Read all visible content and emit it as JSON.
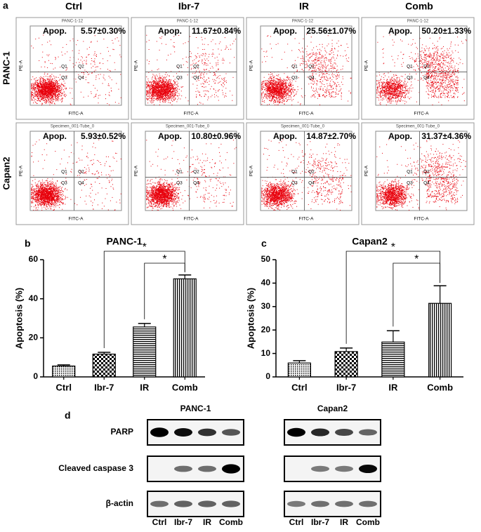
{
  "panel_labels": [
    "a",
    "b",
    "c",
    "d"
  ],
  "flow": {
    "columns": [
      "Ctrl",
      "Ibr-7",
      "IR",
      "Comb"
    ],
    "rows": [
      {
        "label": "PANC-1",
        "specimen": "PANC-1-12",
        "apop_values": [
          "5.57±0.30%",
          "11.67±0.84%",
          "25.56±1.07%",
          "50.20±1.33%"
        ]
      },
      {
        "label": "Capan2",
        "specimen": "Specimen_001-Tube_0",
        "apop_values": [
          "5.93±0.52%",
          "10.80±0.96%",
          "14.87±2.70%",
          "31.37±4.36%"
        ]
      }
    ],
    "apop_label": "Apop.",
    "quadrants": [
      "Q1",
      "Q2",
      "Q3",
      "Q4"
    ],
    "x_axis_label": "FITC-A",
    "y_axis_label": "PE-A"
  },
  "chart_data": [
    {
      "type": "bar",
      "title": "PANC-1",
      "ylabel": "Apoptosis (%)",
      "categories": [
        "Ctrl",
        "Ibr-7",
        "IR",
        "Comb"
      ],
      "values": [
        5.57,
        11.67,
        25.56,
        50.2
      ],
      "errors": [
        0.6,
        0.9,
        1.8,
        2.0
      ],
      "ylim": [
        0,
        60
      ],
      "yticks": [
        0,
        20,
        40,
        60
      ],
      "color": "#000000",
      "comparisons": [
        {
          "pair": [
            "Ibr-7",
            "Comb"
          ],
          "label": "*"
        },
        {
          "pair": [
            "IR",
            "Comb"
          ],
          "label": "*"
        }
      ]
    },
    {
      "type": "bar",
      "title": "Capan2",
      "ylabel": "Apoptosis (%)",
      "categories": [
        "Ctrl",
        "Ibr-7",
        "IR",
        "Comb"
      ],
      "values": [
        5.93,
        10.8,
        14.87,
        31.37
      ],
      "errors": [
        1.0,
        1.5,
        4.8,
        7.5
      ],
      "ylim": [
        0,
        50
      ],
      "yticks": [
        0,
        10,
        20,
        30,
        40,
        50
      ],
      "color": "#000000",
      "comparisons": [
        {
          "pair": [
            "Ibr-7",
            "Comb"
          ],
          "label": "*"
        },
        {
          "pair": [
            "IR",
            "Comb"
          ],
          "label": "*"
        }
      ]
    }
  ],
  "western": {
    "panels": [
      {
        "title": "PANC-1"
      },
      {
        "title": "Capan2"
      }
    ],
    "rows": [
      "PARP",
      "Cleaved caspase 3",
      "β-actin"
    ],
    "lanes": [
      "Ctrl",
      "Ibr-7",
      "IR",
      "Comb"
    ]
  }
}
